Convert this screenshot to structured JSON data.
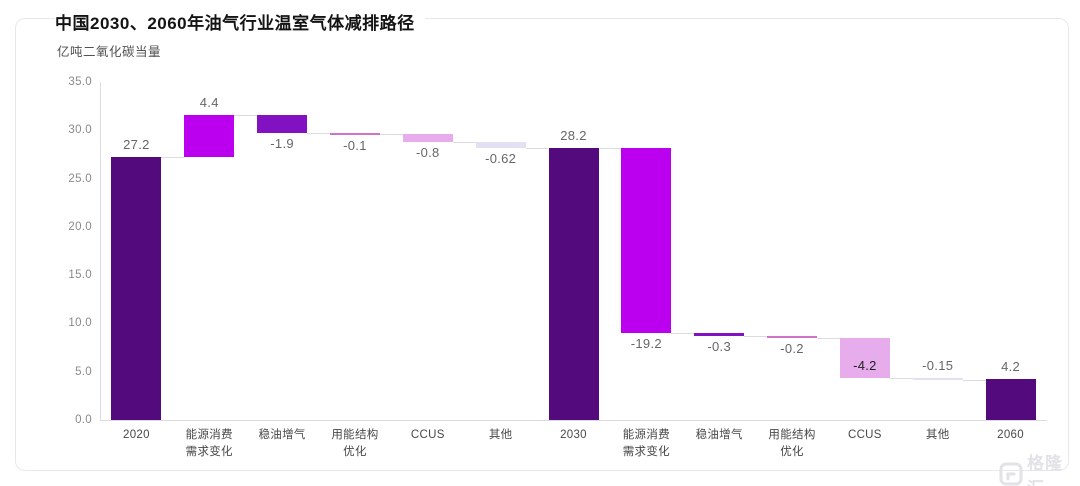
{
  "header": {
    "title": "中国2030、2060年油气行业温室气体减排路径",
    "unit_label": "亿吨二氧化碳当量"
  },
  "watermark": {
    "text": "格隆汇"
  },
  "chart_data": {
    "type": "bar",
    "subtype": "waterfall",
    "title": "中国2030、2060年油气行业温室气体减排路径",
    "ylabel": "亿吨二氧化碳当量",
    "xlabel": "",
    "ylim": [
      0,
      35
    ],
    "yticks": [
      "0.0",
      "5.0",
      "10.0",
      "15.0",
      "20.0",
      "25.0",
      "30.0",
      "35.0"
    ],
    "grid": false,
    "legend": "none",
    "colors": {
      "total": "#520A7D",
      "demand_change": "#BB00F0",
      "stable_oil_gas": "#8211C2",
      "energy_structure": "#CE74C8",
      "ccus": "#E6ACEC",
      "other": "#E4E0F4"
    },
    "label_colors": {
      "default": "#666666",
      "inside": "#1f1f1f"
    },
    "bars": [
      {
        "category": "2020",
        "type": "total",
        "value": 27.2,
        "label": "27.2",
        "series": "total",
        "label_pos": "above"
      },
      {
        "category": "能源消费\n需求变化",
        "type": "change",
        "value": 4.4,
        "label": "4.4",
        "series": "demand_change",
        "label_pos": "above"
      },
      {
        "category": "稳油增气",
        "type": "change",
        "value": -1.9,
        "label": "-1.9",
        "series": "stable_oil_gas",
        "label_pos": "below"
      },
      {
        "category": "用能结构\n优化",
        "type": "change",
        "value": -0.1,
        "label": "-0.1",
        "series": "energy_structure",
        "label_pos": "below"
      },
      {
        "category": "CCUS",
        "type": "change",
        "value": -0.8,
        "label": "-0.8",
        "series": "ccus",
        "label_pos": "below"
      },
      {
        "category": "其他",
        "type": "change",
        "value": -0.62,
        "label": "-0.62",
        "series": "other",
        "label_pos": "below"
      },
      {
        "category": "2030",
        "type": "total",
        "value": 28.2,
        "label": "28.2",
        "series": "total",
        "label_pos": "above"
      },
      {
        "category": "能源消费\n需求变化",
        "type": "change",
        "value": -19.2,
        "label": "-19.2",
        "series": "demand_change",
        "label_pos": "below"
      },
      {
        "category": "稳油增气",
        "type": "change",
        "value": -0.3,
        "label": "-0.3",
        "series": "stable_oil_gas",
        "label_pos": "below"
      },
      {
        "category": "用能结构\n优化",
        "type": "change",
        "value": -0.2,
        "label": "-0.2",
        "series": "energy_structure",
        "label_pos": "below"
      },
      {
        "category": "CCUS",
        "type": "change",
        "value": -4.2,
        "label": "-4.2",
        "series": "ccus",
        "label_pos": "inside-bottom"
      },
      {
        "category": "其他",
        "type": "change",
        "value": -0.15,
        "label": "-0.15",
        "series": "other",
        "label_pos": "above"
      },
      {
        "category": "2060",
        "type": "total",
        "value": 4.2,
        "label": "4.2",
        "series": "total",
        "label_pos": "above"
      }
    ]
  }
}
